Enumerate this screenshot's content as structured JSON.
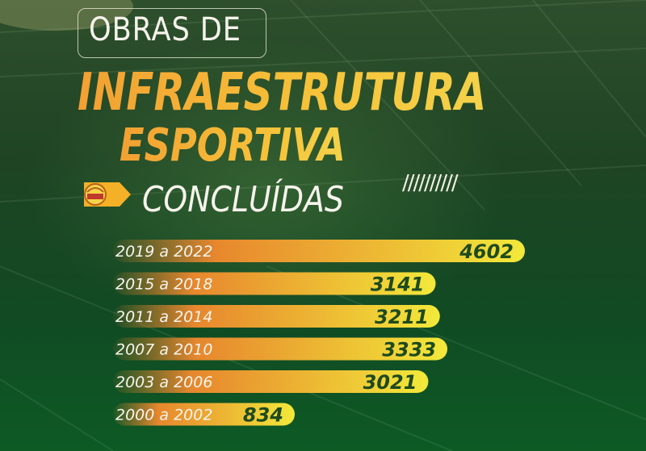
{
  "header": {
    "line1": "OBRAS DE",
    "line2": "INFRAESTRUTURA",
    "line3": "ESPORTIVA",
    "line4": "CONCLUÍDAS",
    "decoration": "//////////"
  },
  "icons": {
    "logo": "government-emblem-arrow-icon"
  },
  "colors": {
    "bar_start": "#f28a2e",
    "bar_end": "#f2e93a",
    "value_text": "#1e4a1e",
    "background": "#114a23"
  },
  "chart_data": {
    "type": "bar",
    "orientation": "horizontal",
    "categories": [
      "2019 a 2022",
      "2015 a 2018",
      "2011 a 2014",
      "2007 a 2010",
      "2003 a 2006",
      "2000 a 2002"
    ],
    "values": [
      4602,
      3141,
      3211,
      3333,
      3021,
      834
    ],
    "value_labels": [
      "4602",
      "3141",
      "3211",
      "3333",
      "3021",
      "834"
    ],
    "title": "",
    "xlabel": "",
    "ylabel": "",
    "grid": false,
    "legend": "none"
  }
}
